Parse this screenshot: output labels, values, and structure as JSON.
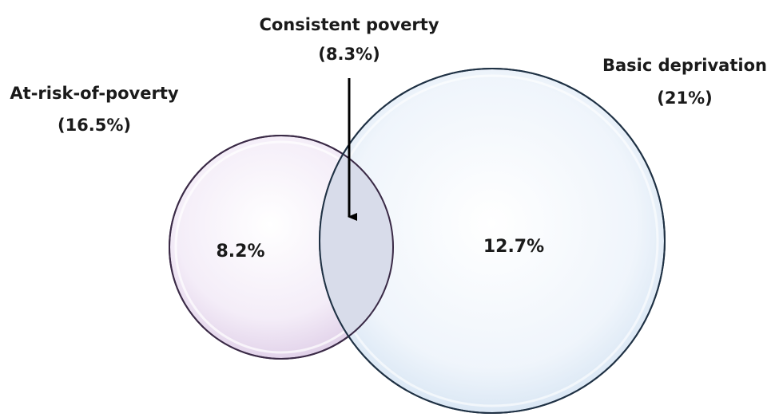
{
  "sets": {
    "at_risk": {
      "name": "At-risk-of-poverty",
      "value": "(16.5%)",
      "only_value": "8.2%",
      "color": "#6b4f7a",
      "fill": "#f1e9f6"
    },
    "basic_deprivation": {
      "name": "Basic deprivation",
      "value": "(21%)",
      "only_value": "12.7%",
      "color": "#2e4a66",
      "fill": "#e9f1f9"
    }
  },
  "overlap": {
    "name": "Consistent poverty",
    "value": "(8.3%)",
    "fill": "#d9dfec"
  }
}
